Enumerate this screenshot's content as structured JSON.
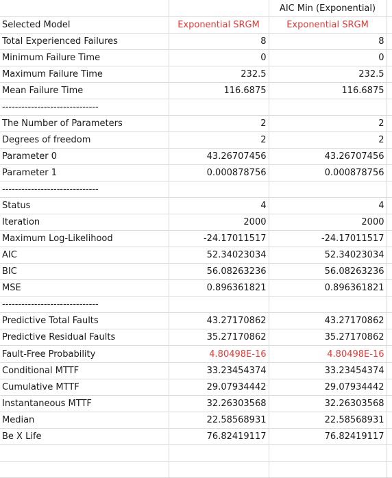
{
  "header": {
    "col_b": "",
    "col_c": "AIC Min (Exponential)"
  },
  "rows": [
    {
      "label": "Selected Model",
      "b": "Exponential SRGM",
      "c": "Exponential SRGM",
      "align": "hdr",
      "red": true
    },
    {
      "label": "Total Experienced Failures",
      "b": "8",
      "c": "8"
    },
    {
      "label": "Minimum Failure Time",
      "b": "0",
      "c": "0"
    },
    {
      "label": "Maximum Failure Time",
      "b": "232.5",
      "c": "232.5"
    },
    {
      "label": "Mean Failure Time",
      "b": "116.6875",
      "c": "116.6875"
    },
    {
      "label": "------------------------------",
      "b": "",
      "c": "",
      "separator": true
    },
    {
      "label": "The Number of Parameters",
      "b": "2",
      "c": "2"
    },
    {
      "label": "Degrees of freedom",
      "b": "2",
      "c": "2"
    },
    {
      "label": "Parameter 0",
      "b": "43.26707456",
      "c": "43.26707456"
    },
    {
      "label": "Parameter 1",
      "b": "0.000878756",
      "c": "0.000878756"
    },
    {
      "label": "------------------------------",
      "b": "",
      "c": "",
      "separator": true
    },
    {
      "label": "Status",
      "b": "4",
      "c": "4"
    },
    {
      "label": "Iteration",
      "b": "2000",
      "c": "2000"
    },
    {
      "label": "Maximum Log-Likelihood",
      "b": "-24.17011517",
      "c": "-24.17011517"
    },
    {
      "label": "AIC",
      "b": "52.34023034",
      "c": "52.34023034"
    },
    {
      "label": "BIC",
      "b": "56.08263236",
      "c": "56.08263236"
    },
    {
      "label": "MSE",
      "b": "0.896361821",
      "c": "0.896361821"
    },
    {
      "label": "------------------------------",
      "b": "",
      "c": "",
      "separator": true
    },
    {
      "label": "Predictive Total Faults",
      "b": "43.27170862",
      "c": "43.27170862"
    },
    {
      "label": "Predictive Residual Faults",
      "b": "35.27170862",
      "c": "35.27170862"
    },
    {
      "label": "Fault-Free Probability",
      "b": "4.80498E-16",
      "c": "4.80498E-16",
      "red": true
    },
    {
      "label": "Conditional MTTF",
      "b": "33.23454374",
      "c": "33.23454374"
    },
    {
      "label": "Cumulative MTTF",
      "b": "29.07934442",
      "c": "29.07934442"
    },
    {
      "label": "Instantaneous MTTF",
      "b": "32.26303568",
      "c": "32.26303568"
    },
    {
      "label": "Median",
      "b": "22.58568931",
      "c": "22.58568931"
    },
    {
      "label": "Be X Life",
      "b": "76.82419117",
      "c": "76.82419117"
    },
    {
      "label": "",
      "b": "",
      "c": "",
      "blank": true
    },
    {
      "label": "",
      "b": "",
      "c": "",
      "blank": true
    }
  ]
}
